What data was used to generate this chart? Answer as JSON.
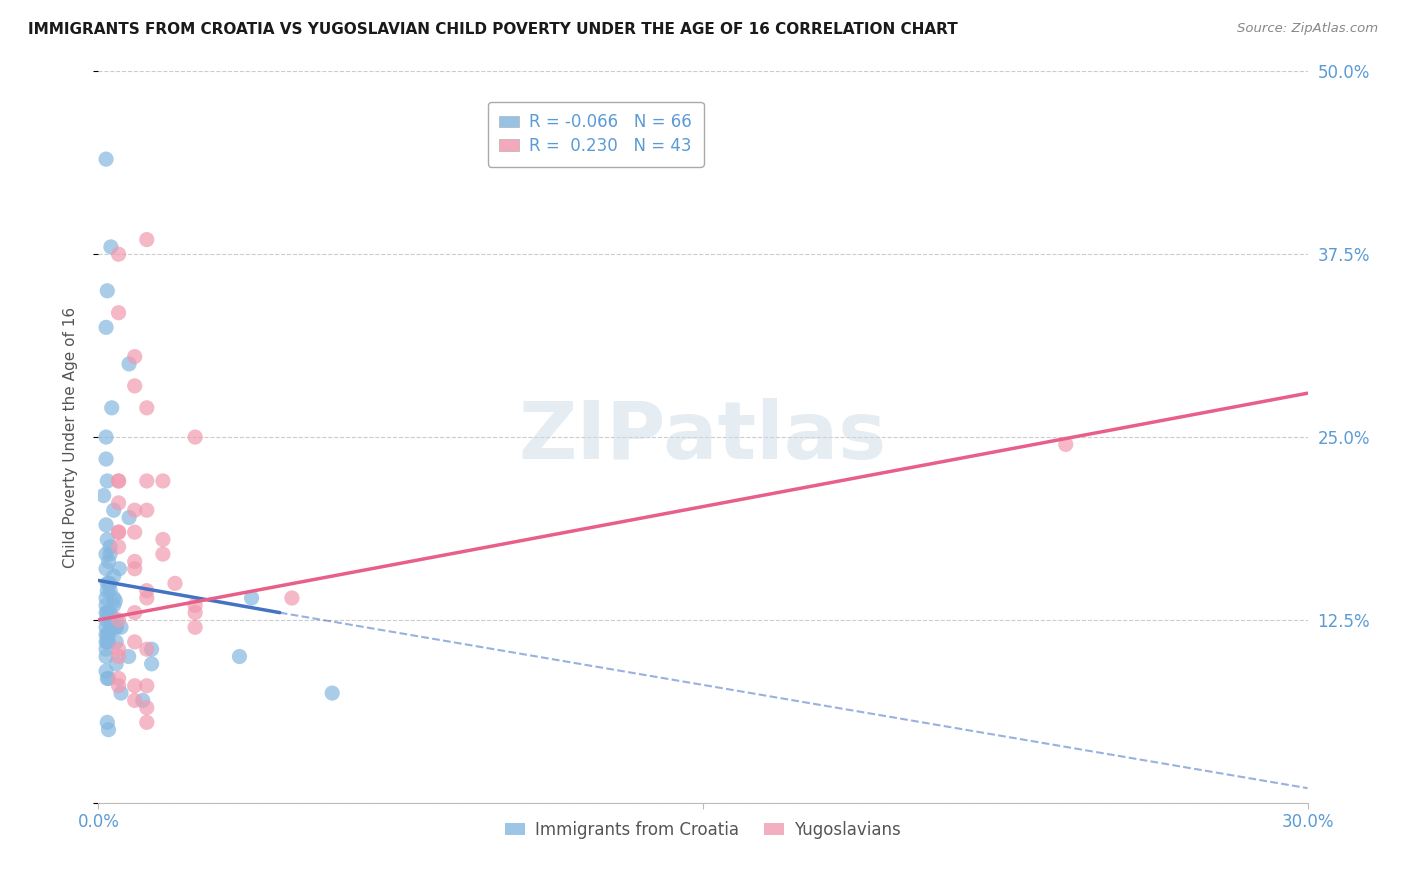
{
  "title": "IMMIGRANTS FROM CROATIA VS YUGOSLAVIAN CHILD POVERTY UNDER THE AGE OF 16 CORRELATION CHART",
  "source": "Source: ZipAtlas.com",
  "ylabel": "Child Poverty Under the Age of 16",
  "xmin": 0.0,
  "xmax": 30.0,
  "ymin": 0.0,
  "ymax": 50.0,
  "yticks": [
    0.0,
    12.5,
    25.0,
    37.5,
    50.0
  ],
  "ytick_labels": [
    "",
    "12.5%",
    "25.0%",
    "37.5%",
    "50.0%"
  ],
  "xtick_positions": [
    0,
    15,
    30
  ],
  "xtick_labels": [
    "0.0%",
    "",
    "30.0%"
  ],
  "legend_r1": "R = -0.066",
  "legend_n1": "N = 66",
  "legend_r2": "R =  0.230",
  "legend_n2": "N = 43",
  "legend_labels_bottom": [
    "Immigrants from Croatia",
    "Yugoslavians"
  ],
  "watermark": "ZIPatlas",
  "title_fontsize": 11,
  "axis_color": "#5b9bd5",
  "blue_color": "#85b8e0",
  "pink_color": "#f09ab0",
  "blue_line_color": "#4472c4",
  "pink_line_color": "#e8608a",
  "blue_scatter": {
    "x": [
      0.19,
      0.31,
      0.22,
      0.19,
      0.76,
      0.33,
      0.19,
      0.19,
      0.22,
      0.13,
      0.38,
      0.76,
      0.19,
      0.22,
      0.29,
      0.19,
      0.29,
      0.25,
      0.52,
      0.19,
      0.38,
      0.25,
      0.22,
      0.29,
      0.22,
      0.29,
      0.38,
      0.19,
      0.42,
      0.38,
      0.19,
      0.29,
      0.22,
      0.19,
      0.25,
      0.19,
      0.29,
      0.44,
      0.19,
      0.44,
      0.29,
      0.44,
      0.56,
      0.19,
      0.25,
      0.22,
      0.44,
      0.19,
      0.25,
      0.22,
      0.19,
      1.32,
      0.75,
      0.19,
      3.5,
      3.8,
      0.44,
      1.32,
      0.19,
      0.25,
      0.22,
      5.8,
      0.56,
      1.1,
      0.22,
      0.25
    ],
    "y": [
      44.0,
      38.0,
      35.0,
      32.5,
      30.0,
      27.0,
      25.0,
      23.5,
      22.0,
      21.0,
      20.0,
      19.5,
      19.0,
      18.0,
      17.5,
      17.0,
      17.0,
      16.5,
      16.0,
      16.0,
      15.5,
      15.0,
      15.0,
      15.0,
      14.5,
      14.5,
      14.0,
      14.0,
      13.8,
      13.5,
      13.5,
      13.0,
      13.0,
      13.0,
      13.0,
      12.5,
      12.5,
      12.5,
      12.0,
      12.0,
      12.0,
      12.0,
      12.0,
      11.5,
      11.5,
      11.5,
      11.0,
      11.0,
      11.0,
      11.0,
      10.5,
      10.5,
      10.0,
      10.0,
      10.0,
      14.0,
      9.5,
      9.5,
      9.0,
      8.5,
      8.5,
      7.5,
      7.5,
      7.0,
      5.5,
      5.0
    ]
  },
  "pink_scatter": {
    "x": [
      0.5,
      0.5,
      1.2,
      0.5,
      0.9,
      0.5,
      0.9,
      1.2,
      1.2,
      0.5,
      1.6,
      0.9,
      1.2,
      0.5,
      0.9,
      0.5,
      1.6,
      0.5,
      1.6,
      2.4,
      0.9,
      0.9,
      1.9,
      1.2,
      1.2,
      2.4,
      2.4,
      0.9,
      0.5,
      2.4,
      0.9,
      4.8,
      0.5,
      1.2,
      0.5,
      0.5,
      0.5,
      1.2,
      0.9,
      0.9,
      1.2,
      1.2,
      24.0
    ],
    "y": [
      37.5,
      33.5,
      38.5,
      22.0,
      30.5,
      22.0,
      28.5,
      27.0,
      22.0,
      20.5,
      22.0,
      20.0,
      20.0,
      18.5,
      18.5,
      18.5,
      18.0,
      17.5,
      17.0,
      25.0,
      16.5,
      16.0,
      15.0,
      14.5,
      14.0,
      13.5,
      13.0,
      13.0,
      12.5,
      12.0,
      11.0,
      14.0,
      10.5,
      10.5,
      10.0,
      8.5,
      8.0,
      8.0,
      8.0,
      7.0,
      6.5,
      5.5,
      24.5
    ]
  },
  "blue_trend_solid": {
    "x": [
      0.0,
      4.5
    ],
    "y": [
      15.2,
      13.0
    ]
  },
  "blue_trend_dash": {
    "x": [
      4.5,
      30.0
    ],
    "y": [
      13.0,
      1.0
    ]
  },
  "pink_trend_solid": {
    "x": [
      0.0,
      30.0
    ],
    "y": [
      12.5,
      28.0
    ]
  }
}
